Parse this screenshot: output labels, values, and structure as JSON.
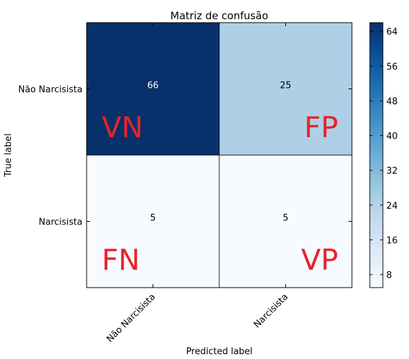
{
  "chart_data": {
    "type": "heatmap",
    "title": "Matriz de confusão",
    "xlabel": "Predicted label",
    "ylabel": "True label",
    "x_categories": [
      "Não Narcisista",
      "Narcisista"
    ],
    "y_categories": [
      "Não Narcisista",
      "Narcisista"
    ],
    "values": [
      [
        66,
        25
      ],
      [
        5,
        5
      ]
    ],
    "quadrant_labels": [
      [
        "VN",
        "FP"
      ],
      [
        "FN",
        "VP"
      ]
    ],
    "colorbar": {
      "min": 5,
      "max": 66,
      "ticks": [
        8,
        16,
        24,
        32,
        40,
        48,
        56,
        64
      ],
      "colormap": "Blues"
    },
    "colors": {
      "annotation": "#e8232a",
      "dark_cell_text": "#ffffff",
      "light_cell_text": "#000000"
    }
  }
}
